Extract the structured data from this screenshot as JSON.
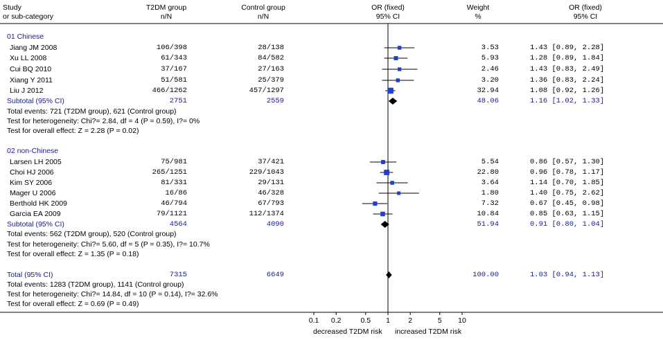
{
  "header": {
    "study_l1": "Study",
    "study_l2": "or sub-category",
    "t2dm_l1": "T2DM group",
    "t2dm_l2": "n/N",
    "ctrl_l1": "Control group",
    "ctrl_l2": "n/N",
    "or_l1": "OR (fixed)",
    "or_l2": "95% CI",
    "weight_l1": "Weight",
    "weight_l2": "%",
    "orci_l1": "OR (fixed)",
    "orci_l2": "95% CI"
  },
  "colors": {
    "accent": "#1a1a8a",
    "square": "#1f3fd1",
    "diamond": "#000000"
  },
  "chart_data": {
    "type": "forest",
    "x_scale": "log",
    "x_ticks": [
      0.1,
      0.2,
      0.5,
      1,
      2,
      5,
      10
    ],
    "x_tick_labels": [
      "0.1",
      "0.2",
      "0.5",
      "1",
      "2",
      "5",
      "10"
    ],
    "xlabel_left": "decreased T2DM risk",
    "xlabel_right": "increased T2DM risk",
    "groups": [
      {
        "name": "01 Chinese",
        "studies": [
          {
            "study": "Jiang JM 2008",
            "t2dm": "106/398",
            "control": "28/138",
            "weight": "3.53",
            "ci_text": "1.43 [0.89, 2.28]",
            "or": 1.43,
            "lo": 0.89,
            "hi": 2.28
          },
          {
            "study": "Xu LL 2008",
            "t2dm": "61/343",
            "control": "84/582",
            "weight": "5.93",
            "ci_text": "1.28 [0.89, 1.84]",
            "or": 1.28,
            "lo": 0.89,
            "hi": 1.84
          },
          {
            "study": "Cui BQ 2010",
            "t2dm": "37/167",
            "control": "27/163",
            "weight": "2.46",
            "ci_text": "1.43 [0.83, 2.49]",
            "or": 1.43,
            "lo": 0.83,
            "hi": 2.49
          },
          {
            "study": "Xiang Y 2011",
            "t2dm": "51/581",
            "control": "25/379",
            "weight": "3.20",
            "ci_text": "1.36 [0.83, 2.24]",
            "or": 1.36,
            "lo": 0.83,
            "hi": 2.24
          },
          {
            "study": "Liu J 2012",
            "t2dm": "466/1262",
            "control": "457/1297",
            "weight": "32.94",
            "ci_text": "1.08 [0.92, 1.26]",
            "or": 1.08,
            "lo": 0.92,
            "hi": 1.26
          }
        ],
        "subtotal": {
          "label": "Subtotal (95% CI)",
          "t2dm": "2751",
          "control": "2559",
          "weight": "48.06",
          "ci_text": "1.16 [1.02, 1.33]",
          "or": 1.16,
          "lo": 1.02,
          "hi": 1.33
        },
        "events": "Total events: 721 (T2DM group), 621 (Control group)",
        "heterogeneity": "Test for heterogeneity: Chi?= 2.84, df = 4 (P = 0.59), I?= 0%",
        "overall": "Test for overall effect: Z = 2.28 (P = 0.02)"
      },
      {
        "name": "02 non-Chinese",
        "studies": [
          {
            "study": "Larsen LH 2005",
            "t2dm": "75/981",
            "control": "37/421",
            "weight": "5.54",
            "ci_text": "0.86 [0.57, 1.30]",
            "or": 0.86,
            "lo": 0.57,
            "hi": 1.3
          },
          {
            "study": "Choi HJ 2006",
            "t2dm": "265/1251",
            "control": "229/1043",
            "weight": "22.80",
            "ci_text": "0.96 [0.78, 1.17]",
            "or": 0.96,
            "lo": 0.78,
            "hi": 1.17
          },
          {
            "study": "Kim SY 2006",
            "t2dm": "81/331",
            "control": "29/131",
            "weight": "3.64",
            "ci_text": "1.14 [0.70, 1.85]",
            "or": 1.14,
            "lo": 0.7,
            "hi": 1.85
          },
          {
            "study": "Mager U 2006",
            "t2dm": "16/86",
            "control": "46/328",
            "weight": "1.80",
            "ci_text": "1.40 [0.75, 2.62]",
            "or": 1.4,
            "lo": 0.75,
            "hi": 2.62
          },
          {
            "study": "Berthold HK 2009",
            "t2dm": "46/794",
            "control": "67/793",
            "weight": "7.32",
            "ci_text": "0.67 [0.45, 0.98]",
            "or": 0.67,
            "lo": 0.45,
            "hi": 0.98
          },
          {
            "study": "Garcia EA 2009",
            "t2dm": "79/1121",
            "control": "112/1374",
            "weight": "10.84",
            "ci_text": "0.85 [0.63, 1.15]",
            "or": 0.85,
            "lo": 0.63,
            "hi": 1.15
          }
        ],
        "subtotal": {
          "label": "Subtotal (95% CI)",
          "t2dm": "4564",
          "control": "4090",
          "weight": "51.94",
          "ci_text": "0.91 [0.80, 1.04]",
          "or": 0.91,
          "lo": 0.8,
          "hi": 1.04
        },
        "events": "Total events: 562 (T2DM group), 520 (Control group)",
        "heterogeneity": "Test for heterogeneity: Chi?= 5.60, df = 5 (P = 0.35), I?= 10.7%",
        "overall": "Test for overall effect: Z = 1.35 (P = 0.18)"
      }
    ],
    "total": {
      "label": "Total (95% CI)",
      "t2dm": "7315",
      "control": "6649",
      "weight": "100.00",
      "ci_text": "1.03 [0.94, 1.13]",
      "or": 1.03,
      "lo": 0.94,
      "hi": 1.13,
      "events": "Total events: 1283 (T2DM group), 1141 (Control group)",
      "heterogeneity": "Test for heterogeneity: Chi?= 14.84, df = 10 (P = 0.14), I?= 32.6%",
      "overall": "Test for overall effect: Z = 0.69 (P = 0.49)"
    }
  }
}
